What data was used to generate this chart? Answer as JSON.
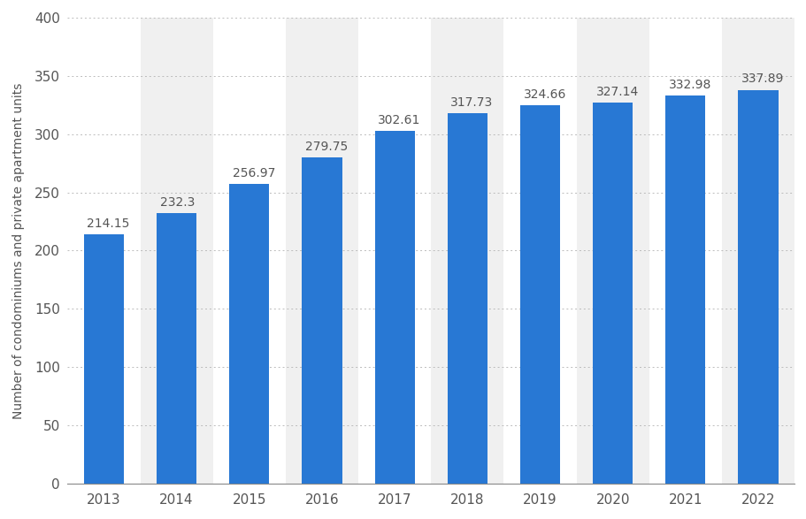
{
  "years": [
    "2013",
    "2014",
    "2015",
    "2016",
    "2017",
    "2018",
    "2019",
    "2020",
    "2021",
    "2022"
  ],
  "values": [
    214.15,
    232.3,
    256.97,
    279.75,
    302.61,
    317.73,
    324.66,
    327.14,
    332.98,
    337.89
  ],
  "bar_color": "#2878D4",
  "background_color": "#ffffff",
  "plot_background_color": "#ffffff",
  "col_band_color": "#f0f0f0",
  "ylabel": "Number of condominiums and private apartment units",
  "ylim": [
    0,
    400
  ],
  "yticks": [
    0,
    50,
    100,
    150,
    200,
    250,
    300,
    350,
    400
  ],
  "grid_color": "#bbbbbb",
  "label_fontsize": 10,
  "tick_fontsize": 11,
  "value_fontsize": 10,
  "bar_width": 0.55
}
